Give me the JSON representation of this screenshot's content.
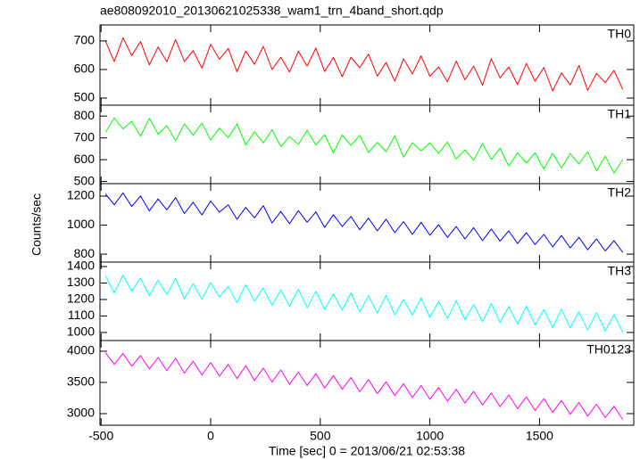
{
  "chart_data": {
    "type": "line",
    "title": "ae808092010_20130621025338_wam1_trn_4band_short.qdp",
    "x_label": "Time [sec] 0 = 2013/06/21 02:53:38",
    "y_label": "Counts/sec",
    "xlim": [
      -505,
      1930
    ],
    "xticks": [
      -500,
      0,
      500,
      1000,
      1500
    ],
    "x": [
      -480,
      -440,
      -400,
      -360,
      -320,
      -280,
      -240,
      -200,
      -160,
      -120,
      -80,
      -40,
      0,
      40,
      80,
      120,
      160,
      200,
      240,
      280,
      320,
      360,
      400,
      440,
      480,
      520,
      560,
      600,
      640,
      680,
      720,
      760,
      800,
      840,
      880,
      920,
      960,
      1000,
      1040,
      1080,
      1120,
      1160,
      1200,
      1240,
      1280,
      1320,
      1360,
      1400,
      1440,
      1480,
      1520,
      1560,
      1600,
      1640,
      1680,
      1720,
      1760,
      1800,
      1840,
      1880
    ],
    "panels": [
      {
        "ylim": [
          475,
          756
        ],
        "yticks": [
          500,
          600,
          700
        ],
        "series": [
          {
            "name": "TH0",
            "color": "#ff0000",
            "values": [
              700,
              628,
              711,
              649,
              698,
              616,
              679,
              627,
              705,
              628,
              666,
              605,
              688,
              636,
              674,
              592,
              665,
              618,
              681,
              600,
              643,
              591,
              664,
              612,
              675,
              593,
              642,
              575,
              643,
              606,
              654,
              577,
              625,
              559,
              637,
              585,
              648,
              576,
              609,
              557,
              630,
              564,
              612,
              545,
              638,
              571,
              609,
              547,
              621,
              559,
              607,
              525,
              588,
              546,
              614,
              527,
              586,
              554,
              597,
              530
            ]
          }
        ]
      },
      {
        "ylim": [
          490,
          850
        ],
        "yticks": [
          500,
          600,
          700,
          800
        ],
        "series": [
          {
            "name": "TH1",
            "color": "#00ff00",
            "values": [
              725,
              792,
              741,
              776,
              708,
              790,
              717,
              756,
              688,
              765,
              712,
              768,
              690,
              745,
              702,
              764,
              668,
              728,
              677,
              737,
              660,
              706,
              670,
              735,
              667,
              714,
              631,
              713,
              665,
              712,
              633,
              680,
              637,
              709,
              611,
              678,
              640,
              677,
              629,
              681,
              603,
              645,
              597,
              674,
              601,
              653,
              570,
              632,
              584,
              631,
              557,
              629,
              561,
              628,
              580,
              637,
              549,
              616,
              538,
              602
            ]
          }
        ]
      },
      {
        "ylim": [
          745,
          1286
        ],
        "yticks": [
          800,
          1000,
          1200
        ],
        "series": [
          {
            "name": "TH2",
            "color": "#0000ff",
            "values": [
              1215,
              1140,
              1222,
              1128,
              1201,
              1098,
              1180,
              1105,
              1190,
              1080,
              1158,
              1070,
              1166,
              1090,
              1140,
              1040,
              1122,
              1050,
              1135,
              1015,
              1094,
              1010,
              1100,
              1020,
              1091,
              984,
              1072,
              990,
              1060,
              968,
              1049,
              960,
              1041,
              948,
              1024,
              936,
              1020,
              930,
              1003,
              915,
              990,
              905,
              982,
              893,
              973,
              890,
              960,
              873,
              948,
              866,
              936,
              850,
              928,
              843,
              915,
              830,
              905,
              822,
              893,
              812
            ]
          }
        ]
      },
      {
        "ylim": [
          951,
          1427
        ],
        "yticks": [
          1000,
          1100,
          1200,
          1300,
          1400
        ],
        "series": [
          {
            "name": "TH3",
            "color": "#00ffff",
            "values": [
              1345,
              1240,
              1348,
              1250,
              1330,
              1222,
              1318,
              1230,
              1328,
              1205,
              1296,
              1202,
              1302,
              1215,
              1280,
              1180,
              1290,
              1190,
              1270,
              1165,
              1258,
              1160,
              1262,
              1150,
              1250,
              1140,
              1235,
              1135,
              1240,
              1125,
              1222,
              1118,
              1224,
              1108,
              1200,
              1105,
              1210,
              1092,
              1188,
              1085,
              1192,
              1078,
              1170,
              1065,
              1175,
              1060,
              1158,
              1050,
              1160,
              1045,
              1140,
              1030,
              1142,
              1028,
              1125,
              1015,
              1120,
              1010,
              1108,
              1002
            ]
          }
        ]
      },
      {
        "ylim": [
          2814,
          4171
        ],
        "yticks": [
          3000,
          3500,
          4000
        ],
        "series": [
          {
            "name": "TH0123",
            "color": "#ff00ff",
            "values": [
              3980,
              3790,
              3965,
              3760,
              3930,
              3715,
              3900,
              3690,
              3885,
              3650,
              3840,
              3620,
              3820,
              3600,
              3790,
              3560,
              3770,
              3530,
              3730,
              3505,
              3700,
              3470,
              3665,
              3450,
              3640,
              3410,
              3610,
              3390,
              3580,
              3350,
              3545,
              3320,
              3510,
              3290,
              3480,
              3260,
              3450,
              3230,
              3420,
              3200,
              3390,
              3170,
              3355,
              3140,
              3330,
              3110,
              3300,
              3080,
              3270,
              3050,
              3240,
              3020,
              3210,
              2990,
              3180,
              2960,
              3150,
              2935,
              3120,
              2905
            ]
          }
        ]
      }
    ]
  }
}
